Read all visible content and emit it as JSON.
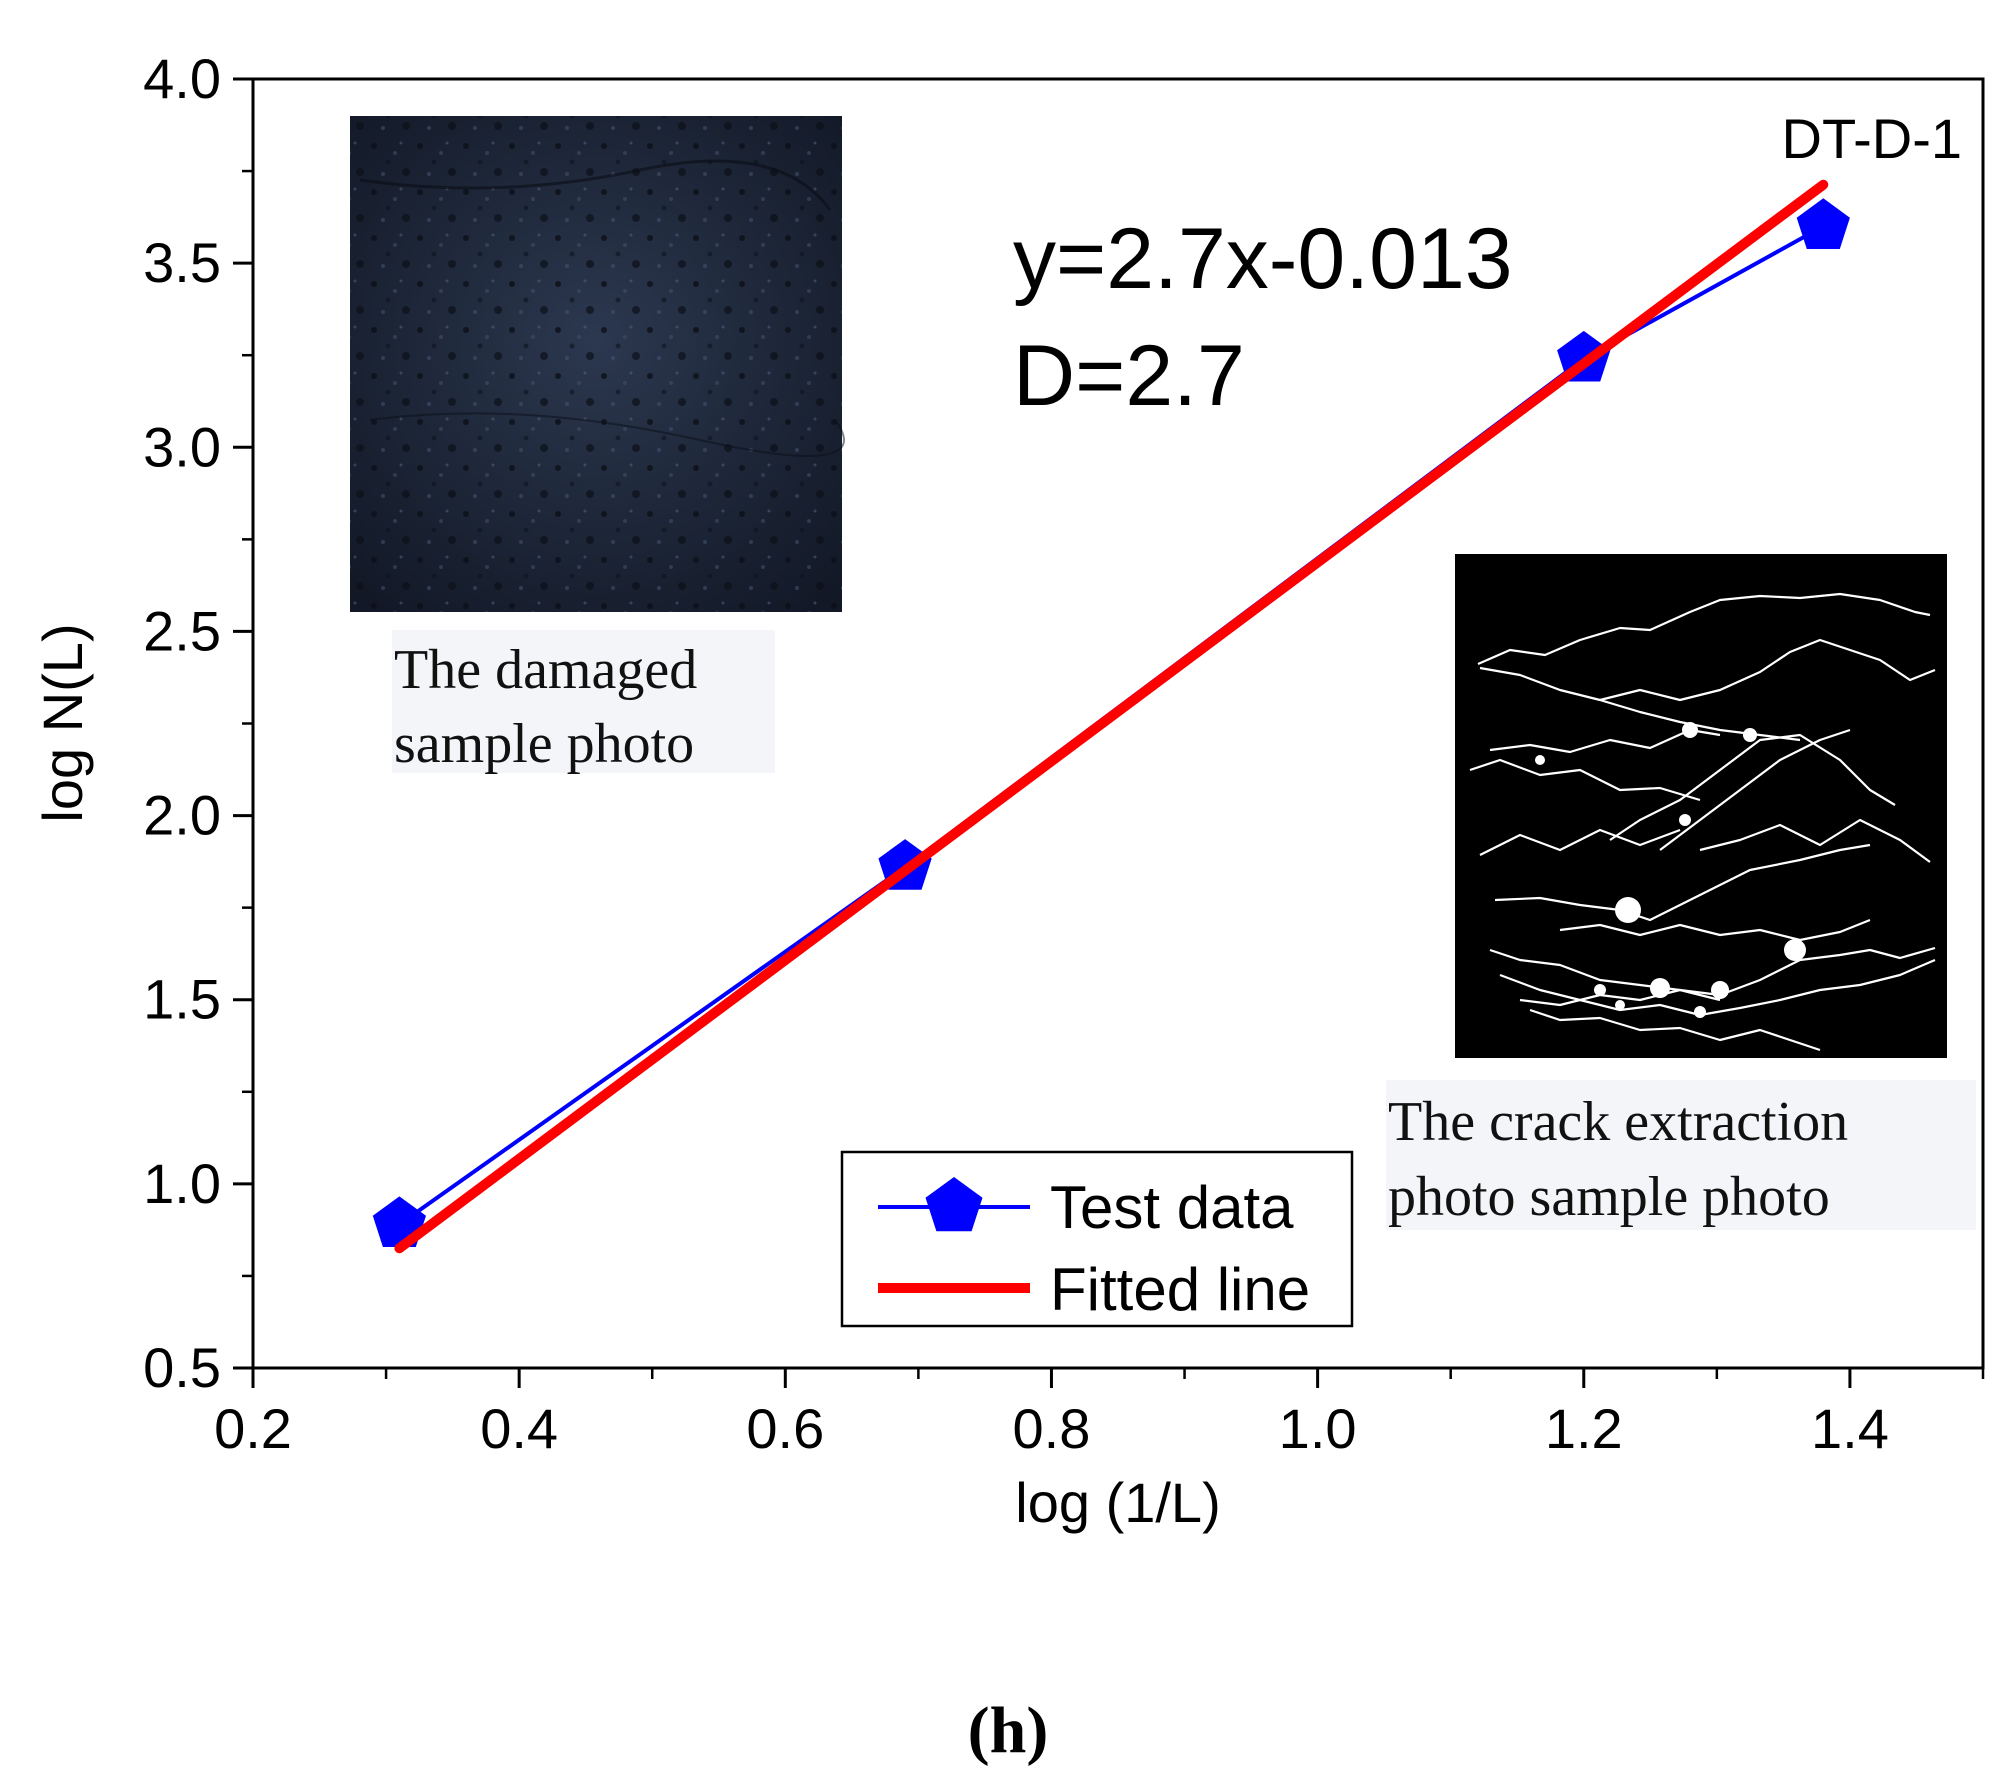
{
  "chart_data": {
    "type": "scatter",
    "title": "",
    "sample_label": "DT-D-1",
    "xlabel": "log (1/L)",
    "ylabel": "log N(L)",
    "xlim": [
      0.2,
      1.5
    ],
    "ylim": [
      0.5,
      4.0
    ],
    "x_ticks": [
      0.2,
      0.4,
      0.6,
      0.8,
      1.0,
      1.2,
      1.4
    ],
    "x_tick_labels": [
      "0.2",
      "0.4",
      "0.6",
      "0.8",
      "1.0",
      "1.2",
      "1.4"
    ],
    "y_ticks": [
      0.5,
      1.0,
      1.5,
      2.0,
      2.5,
      3.0,
      3.5,
      4.0
    ],
    "y_tick_labels": [
      "0.5",
      "1.0",
      "1.5",
      "2.0",
      "2.5",
      "3.0",
      "3.5",
      "4.0"
    ],
    "series": [
      {
        "name": "Test data",
        "color": "#0000ff",
        "marker": "pentagon",
        "x": [
          0.31,
          0.69,
          1.2,
          1.38
        ],
        "y": [
          0.89,
          1.86,
          3.24,
          3.6
        ]
      },
      {
        "name": "Fitted line",
        "color": "#ff0000",
        "x": [
          0.31,
          1.38
        ],
        "y": [
          0.825,
          3.713
        ]
      }
    ],
    "equation": "y=2.7x-0.013",
    "dimension": "D=2.7",
    "legend_position": "bottom-center",
    "grid": false
  },
  "insets": {
    "damaged_caption_line1": "The damaged",
    "damaged_caption_line2": "sample photo",
    "crack_caption_line1": "The crack extraction",
    "crack_caption_line2": "photo sample photo"
  },
  "panel_label": "(h)"
}
